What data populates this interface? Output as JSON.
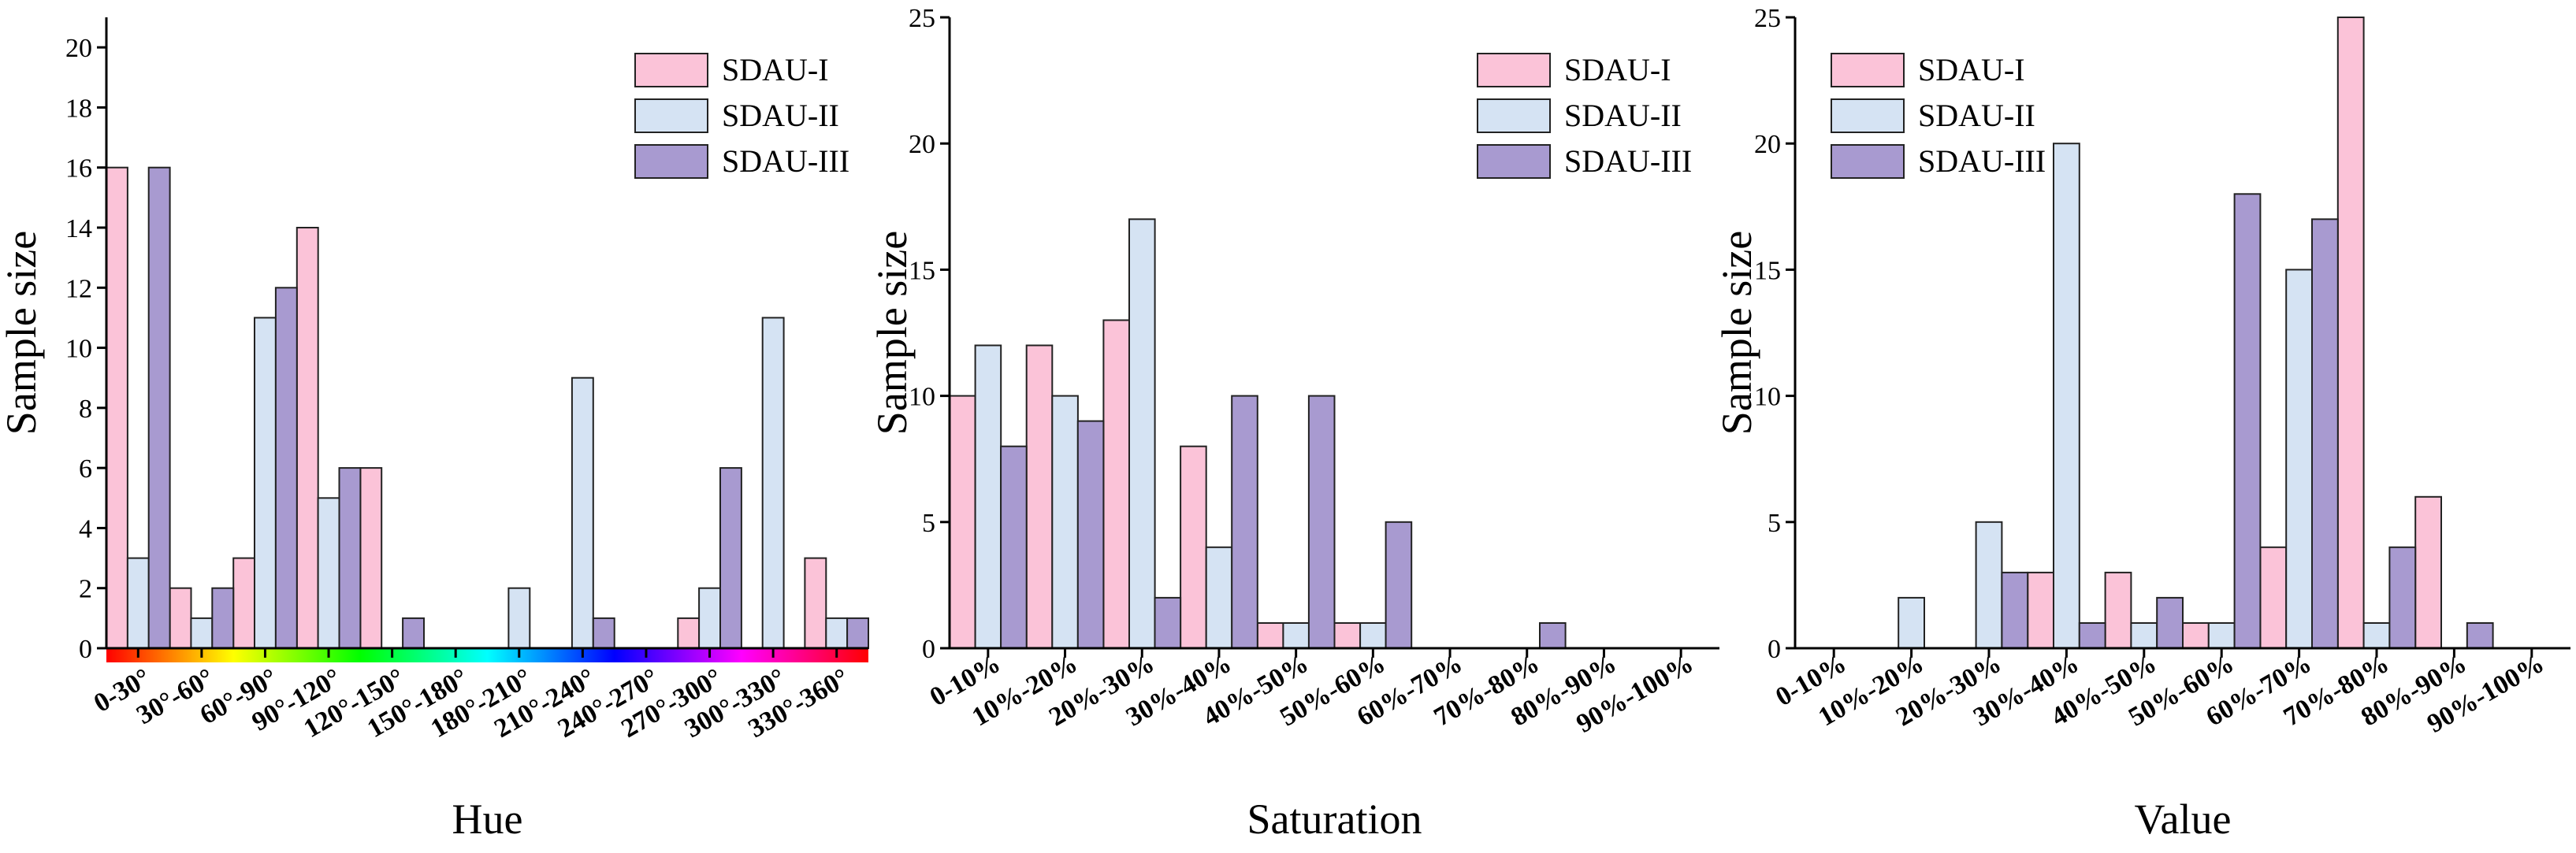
{
  "colors": {
    "SDAU-I": "#fbc3d8",
    "SDAU-II": "#d5e3f3",
    "SDAU-III": "#a89ad0"
  },
  "chart_data": [
    {
      "type": "bar",
      "xlabel": "Hue",
      "ylabel": "Sample size",
      "ylim": [
        0,
        21
      ],
      "yticks": [
        0,
        2,
        4,
        6,
        8,
        10,
        12,
        14,
        16,
        18,
        20
      ],
      "hue_strip": true,
      "legend_position": "top-right",
      "categories": [
        "0-30°",
        "30°-60°",
        "60°-90°",
        "90°-120°",
        "120°-150°",
        "150°-180°",
        "180°-210°",
        "210°-240°",
        "240°-270°",
        "270°-300°",
        "300°-330°",
        "330°-360°"
      ],
      "series": [
        {
          "name": "SDAU-I",
          "values": [
            16,
            2,
            3,
            14,
            6,
            0,
            0,
            0,
            0,
            1,
            0,
            3
          ]
        },
        {
          "name": "SDAU-II",
          "values": [
            3,
            1,
            11,
            5,
            0,
            0,
            2,
            9,
            0,
            2,
            11,
            1
          ]
        },
        {
          "name": "SDAU-III",
          "values": [
            16,
            2,
            12,
            6,
            1,
            0,
            0,
            1,
            0,
            6,
            0,
            1
          ]
        }
      ]
    },
    {
      "type": "bar",
      "xlabel": "Saturation",
      "ylabel": "Sample size",
      "ylim": [
        0,
        25
      ],
      "yticks": [
        0,
        5,
        10,
        15,
        20,
        25
      ],
      "hue_strip": false,
      "legend_position": "top-right",
      "categories": [
        "0-10%",
        "10%-20%",
        "20%-30%",
        "30%-40%",
        "40%-50%",
        "50%-60%",
        "60%-70%",
        "70%-80%",
        "80%-90%",
        "90%-100%"
      ],
      "series": [
        {
          "name": "SDAU-I",
          "values": [
            10,
            12,
            13,
            8,
            1,
            1,
            0,
            0,
            0,
            0
          ]
        },
        {
          "name": "SDAU-II",
          "values": [
            12,
            10,
            17,
            4,
            1,
            1,
            0,
            0,
            0,
            0
          ]
        },
        {
          "name": "SDAU-III",
          "values": [
            8,
            9,
            2,
            10,
            10,
            5,
            0,
            1,
            0,
            0
          ]
        }
      ]
    },
    {
      "type": "bar",
      "xlabel": "Value",
      "ylabel": "Sample size",
      "ylim": [
        0,
        25
      ],
      "yticks": [
        0,
        5,
        10,
        15,
        20,
        25
      ],
      "hue_strip": false,
      "legend_position": "top-left",
      "categories": [
        "0-10%",
        "10%-20%",
        "20%-30%",
        "30%-40%",
        "40%-50%",
        "50%-60%",
        "60%-70%",
        "70%-80%",
        "80%-90%",
        "90%-100%"
      ],
      "series": [
        {
          "name": "SDAU-I",
          "values": [
            0,
            0,
            0,
            3,
            3,
            1,
            4,
            25,
            6,
            0
          ]
        },
        {
          "name": "SDAU-II",
          "values": [
            0,
            2,
            5,
            20,
            1,
            1,
            15,
            1,
            0,
            0
          ]
        },
        {
          "name": "SDAU-III",
          "values": [
            0,
            0,
            3,
            1,
            2,
            18,
            17,
            4,
            1,
            0
          ]
        }
      ]
    }
  ]
}
